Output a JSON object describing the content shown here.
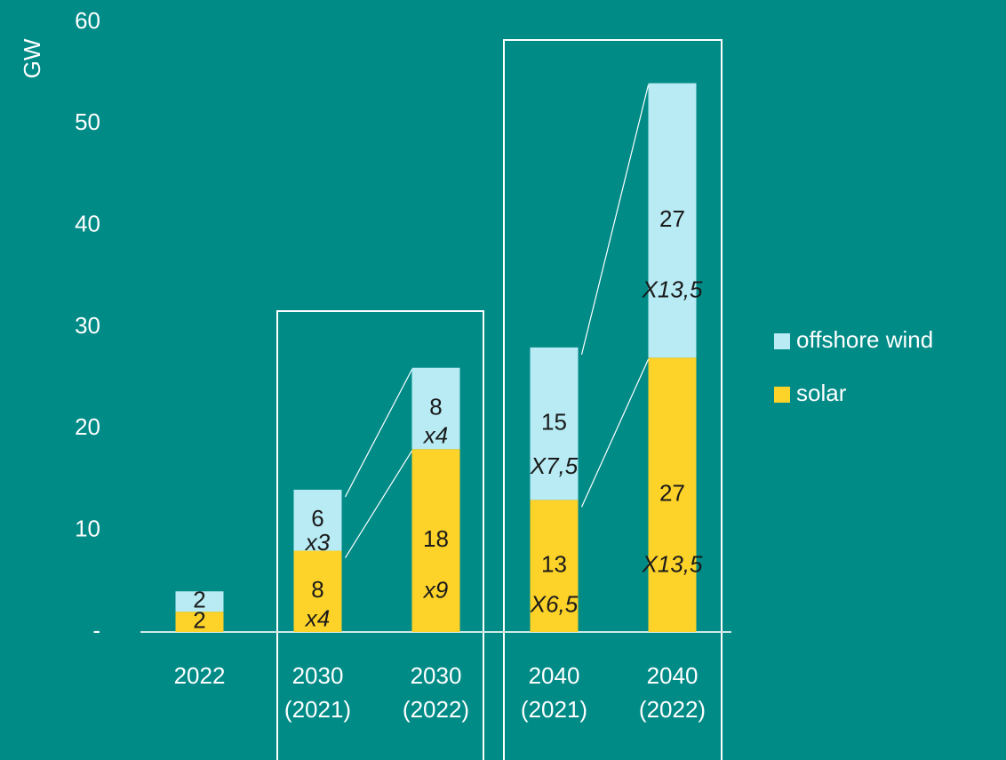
{
  "chart_data": {
    "type": "bar",
    "stacked": true,
    "y_label": "GW",
    "categories": [
      "2022",
      "2030 (2021)",
      "2030 (2022)",
      "2040 (2021)",
      "2040 (2022)"
    ],
    "series": [
      {
        "name": "solar",
        "color": "#fdd32a",
        "values": [
          2,
          8,
          18,
          13,
          27
        ],
        "multiplier_labels": [
          null,
          "x4",
          "x9",
          "X6,5",
          "X13,5"
        ]
      },
      {
        "name": "offshore wind",
        "color": "#b8ebf4",
        "values": [
          2,
          6,
          8,
          15,
          27
        ],
        "multiplier_labels": [
          null,
          "x3",
          "x4",
          "X7,5",
          "X13,5"
        ]
      }
    ],
    "ylim": [
      0,
      60
    ],
    "yticks": [
      {
        "value": 0,
        "label": "-"
      },
      10,
      20,
      30,
      40,
      50,
      60
    ],
    "grid": false,
    "legend": "right"
  }
}
